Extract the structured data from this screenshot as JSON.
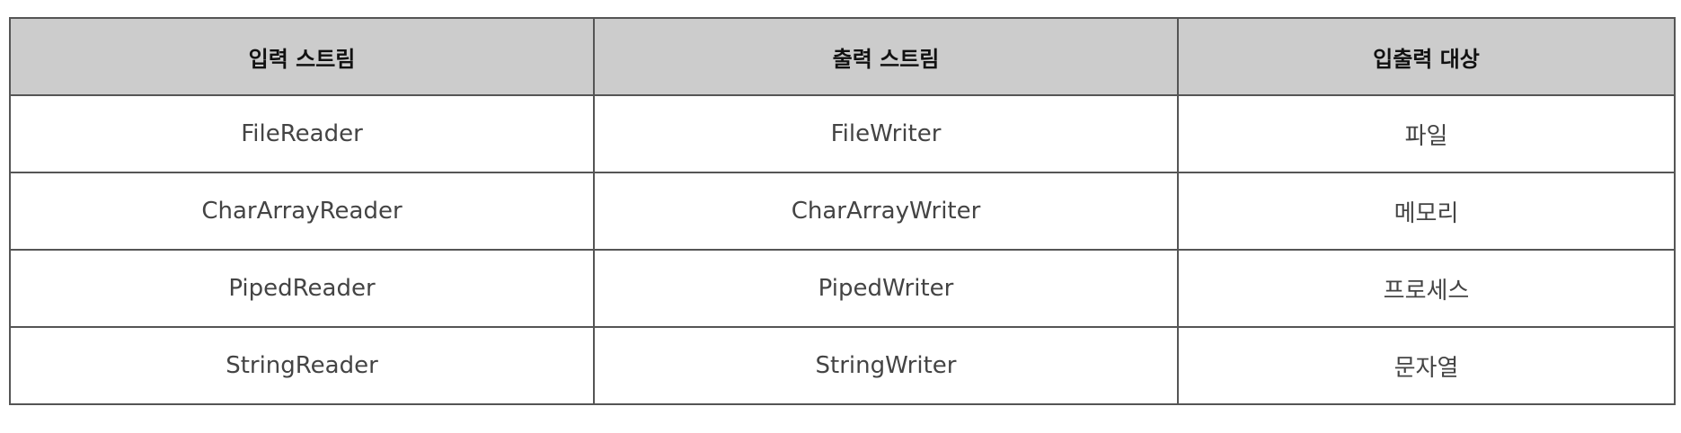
{
  "table": {
    "headers": [
      "입력 스트림",
      "출력 스트림",
      "입출력 대상"
    ],
    "rows": [
      [
        "FileReader",
        "FileWriter",
        "파일"
      ],
      [
        "CharArrayReader",
        "CharArrayWriter",
        "메모리"
      ],
      [
        "PipedReader",
        "PipedWriter",
        "프로세스"
      ],
      [
        "StringReader",
        "StringWriter",
        "문자열"
      ]
    ]
  },
  "colors": {
    "header_background": "#cccccc",
    "border": "#555555",
    "cell_text": "#444444"
  }
}
